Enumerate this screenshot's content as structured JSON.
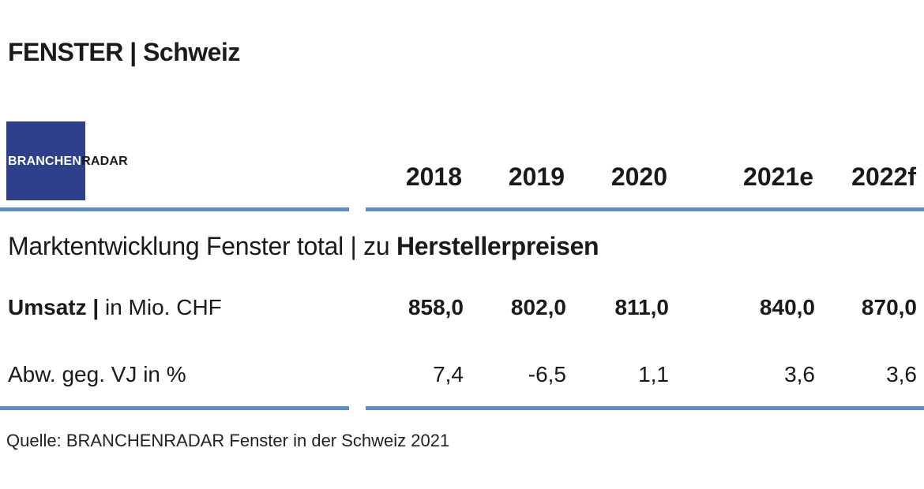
{
  "title": "FENSTER | Schweiz",
  "logo": {
    "text_white": "BRANCHEN",
    "text_dark": "RADAR"
  },
  "years": [
    "2018",
    "2019",
    "2020",
    "2021e",
    "2022f"
  ],
  "section": {
    "prefix": "Marktentwicklung Fenster total | zu ",
    "emphasis": "Herstellerpreisen"
  },
  "rows": [
    {
      "label_bold": "Umsatz |",
      "label_rest": " in Mio. CHF",
      "values": [
        "858,0",
        "802,0",
        "811,0",
        "840,0",
        "870,0"
      ]
    },
    {
      "label": "Abw. geg. VJ in %",
      "values": [
        "7,4",
        "-6,5",
        "1,1",
        "3,6",
        "3,6"
      ]
    }
  ],
  "source": "Quelle: BRANCHENRADAR Fenster in der Schweiz 2021",
  "colors": {
    "accent_rule": "#5b8bc9",
    "logo_bg": "#2e3f8c"
  }
}
